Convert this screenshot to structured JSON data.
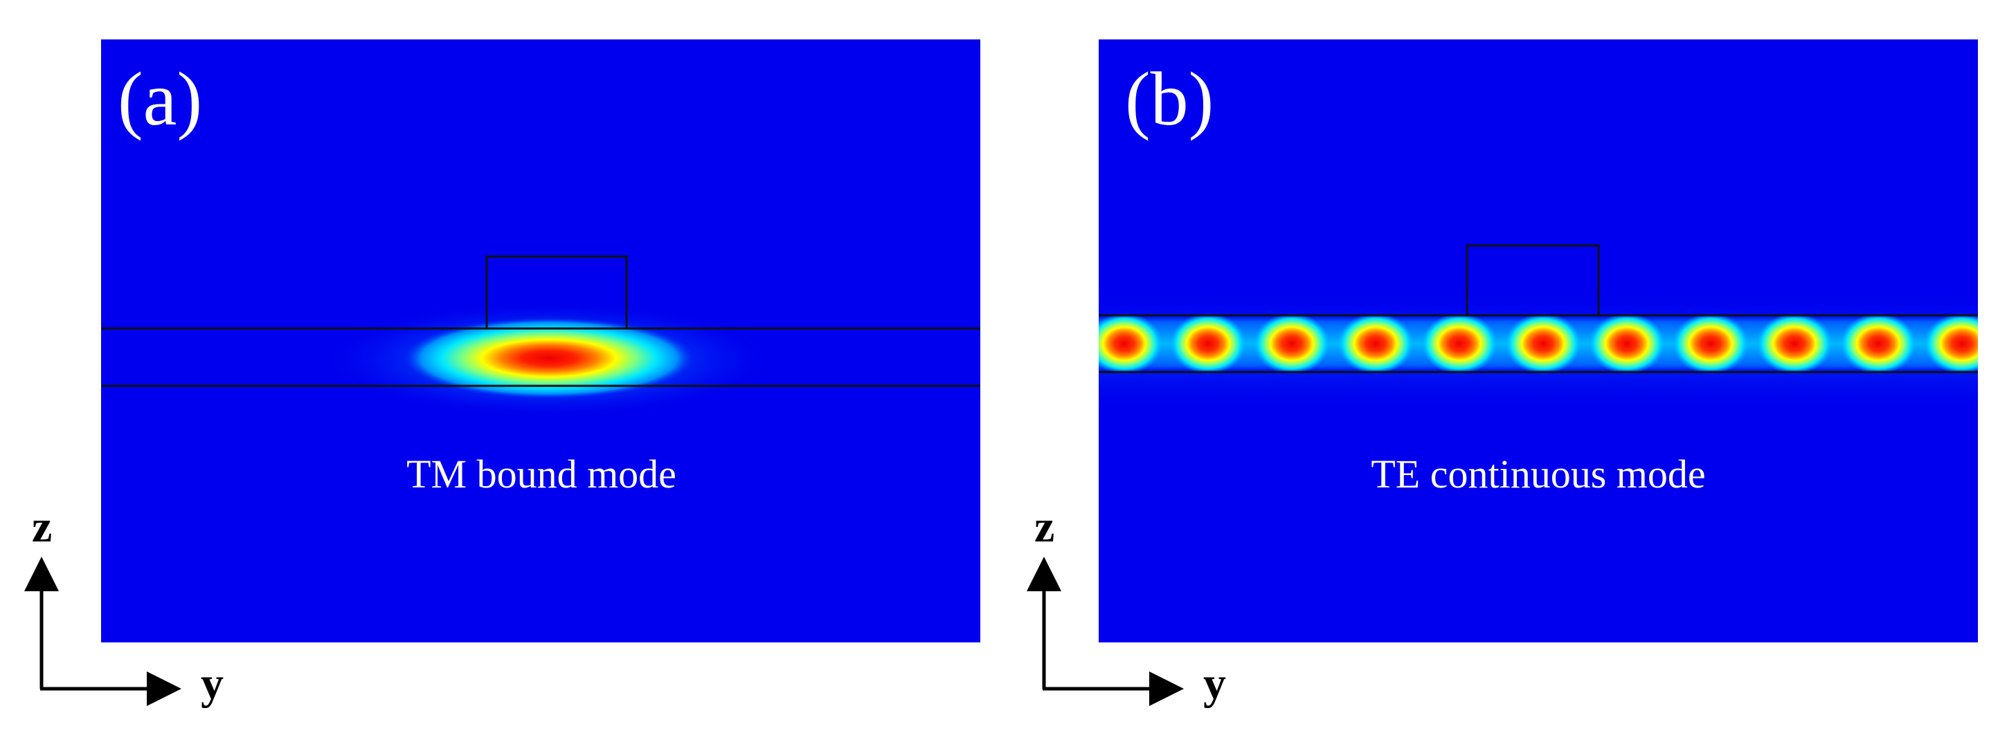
{
  "panels": [
    {
      "id": "a",
      "letter": "(a)",
      "caption": "TM bound mode"
    },
    {
      "id": "b",
      "letter": "(b)",
      "caption": "TE continuous mode"
    }
  ],
  "axes": {
    "vertical": "z",
    "horizontal": "y"
  },
  "colors": {
    "background_field": "#0000ee",
    "outline": "#111111",
    "text": "#ffffff",
    "axis": "#000000",
    "colormap": [
      "#0000ee",
      "#0090ff",
      "#00e8ff",
      "#7fff80",
      "#ffff00",
      "#ff8000",
      "#ee0000"
    ]
  }
}
